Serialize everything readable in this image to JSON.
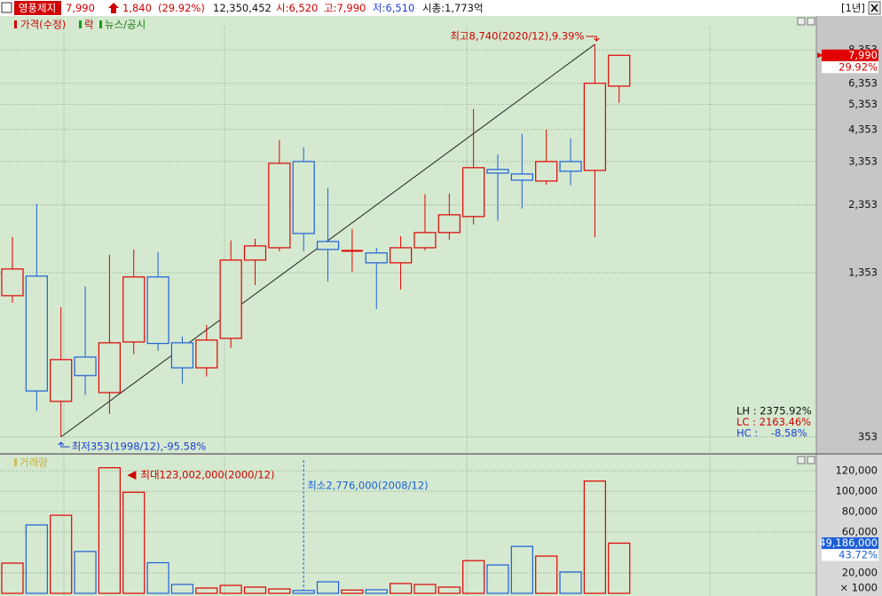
{
  "header": {
    "name": "영풍제지",
    "price": "7,990",
    "change": "1,840",
    "change_pct": "(29.92%)",
    "volume": "12,350,452",
    "open": "시:6,520",
    "high": "고:7,990",
    "low": "저:6,510",
    "market_cap": "시총:1,773억",
    "period": "[1년]"
  },
  "chart_data": [
    {
      "type": "candlestick",
      "legend": [
        "가격(수정)",
        "락",
        "뉴스/공시"
      ],
      "log_scale": true,
      "grid": true,
      "ylim": [
        314,
        10100
      ],
      "yticks": [
        353,
        {
          "value": 1353,
          "label": "1,353"
        },
        {
          "value": 2353,
          "label": "2,353"
        },
        {
          "value": 3353,
          "label": "3,353"
        },
        {
          "value": 4353,
          "label": "4,353"
        },
        {
          "value": 5353,
          "label": "5,353"
        },
        {
          "value": 6353,
          "label": "6,353"
        },
        {
          "value": 8353,
          "label": "8,353"
        }
      ],
      "up_color": "#e00000",
      "down_color": "#1c5fd8",
      "open": [
        1120,
        1314,
        472,
        678,
        507,
        767,
        1305,
        762,
        621,
        790,
        1498,
        1657,
        3353,
        1744,
        1610,
        1588,
        1465,
        1657,
        1876,
        2138,
        3143,
        3029,
        2859,
        3353,
        3118,
        6211
      ],
      "high": [
        1810,
        2368,
        1019,
        1206,
        1565,
        1634,
        1599,
        802,
        882,
        1759,
        1783,
        3993,
        3768,
        2698,
        1932,
        1657,
        1821,
        2564,
        2583,
        5148,
        3557,
        4201,
        4358,
        4050,
        8740,
        7990
      ],
      "low": [
        1057,
        436,
        353,
        497,
        426,
        694,
        714,
        546,
        579,
        730,
        1222,
        1610,
        1610,
        1258,
        1363,
        1004,
        1178,
        1622,
        1771,
        2004,
        2062,
        2283,
        2775,
        2763,
        1809,
        5417
      ],
      "close": [
        1393,
        514,
        664,
        583,
        762,
        1305,
        758,
        621,
        779,
        1498,
        1682,
        3305,
        1862,
        1634,
        1622,
        1465,
        1657,
        1876,
        2169,
        3188,
        3050,
        2879,
        3353,
        3098,
        6358,
        7990
      ],
      "last_value": {
        "value": 7990,
        "label": "7,990"
      },
      "last_change": "29.92%",
      "high_note": "최고8,740(2020/12),9.39%",
      "low_note": "최저353(1998/12),-95.58%",
      "stats": [
        "LH : 2375.92%",
        "LC : 2163.46%",
        "HC :    -8.58%"
      ]
    },
    {
      "type": "bar",
      "title": "거래량",
      "grid": true,
      "ylim": [
        0,
        134000
      ],
      "yticks": [
        {
          "value": 20000,
          "label": "20,000"
        },
        {
          "value": 60000,
          "label": "60,000"
        },
        {
          "value": 80000,
          "label": "80,000"
        },
        {
          "value": 100000,
          "label": "100,000"
        },
        {
          "value": 120000,
          "label": "120,000"
        }
      ],
      "values": [
        29600,
        67000,
        76500,
        41000,
        123002,
        99000,
        30000,
        8700,
        5200,
        7800,
        6100,
        4300,
        2776,
        11300,
        3200,
        3500,
        9600,
        8700,
        6100,
        32000,
        27800,
        46000,
        36500,
        20900,
        110000,
        49186
      ],
      "last_value": {
        "value": 49186,
        "label": "49,186,000"
      },
      "last_change": "43.72%",
      "unit_label": "× 1000",
      "max_note": "최대123,002,000(2000/12)",
      "min_note": "최소2,776,000(2008/12)"
    }
  ]
}
